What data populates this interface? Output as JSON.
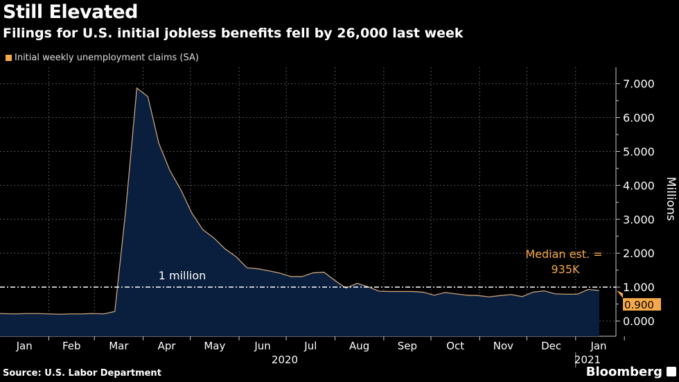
{
  "title": "Still Elevated",
  "subtitle": "Filings for U.S. initial jobless benefits fell by 26,000 last week",
  "legend": "Initial weekly unemployment claims (SA)",
  "source": "Source: U.S. Labor Department",
  "brand": "Bloomberg",
  "colors": {
    "line": "#c9a27c",
    "fill": "#0a1f3d",
    "accent": "#f6a94a",
    "background": "#000000"
  },
  "chart_data": {
    "type": "area",
    "title": "Still Elevated",
    "ylabel": "Millions",
    "ylim": [
      -0.5,
      7.3
    ],
    "yticks": [
      "0.000",
      "1.000",
      "2.000",
      "3.000",
      "4.000",
      "5.000",
      "6.000",
      "7.000"
    ],
    "ytick_values": [
      0,
      1,
      2,
      3,
      4,
      5,
      6,
      7
    ],
    "xticks": [
      "Jan",
      "Feb",
      "Mar",
      "Apr",
      "May",
      "Jun",
      "Jul",
      "Aug",
      "Sep",
      "Oct",
      "Nov",
      "Dec",
      "Jan"
    ],
    "year_labels": [
      "2020",
      "2021"
    ],
    "grid": true,
    "legend_position": "top-left",
    "series": [
      {
        "name": "Initial weekly unemployment claims (SA)",
        "start_date": "2020-01-04",
        "frequency": "weekly",
        "values": [
          0.22,
          0.21,
          0.22,
          0.22,
          0.21,
          0.2,
          0.21,
          0.21,
          0.22,
          0.21,
          0.28,
          3.3,
          6.87,
          6.62,
          5.24,
          4.44,
          3.87,
          3.18,
          2.69,
          2.45,
          2.13,
          1.9,
          1.57,
          1.54,
          1.48,
          1.41,
          1.31,
          1.31,
          1.42,
          1.44,
          1.19,
          0.97,
          1.11,
          1.01,
          0.88,
          0.87,
          0.87,
          0.87,
          0.85,
          0.76,
          0.84,
          0.8,
          0.76,
          0.75,
          0.71,
          0.75,
          0.78,
          0.72,
          0.85,
          0.89,
          0.8,
          0.79,
          0.79,
          0.93,
          0.9
        ]
      }
    ],
    "reference_line": {
      "value": 1.0,
      "label": "1 million"
    },
    "annotation": {
      "line1": "Median est. =",
      "line2": "935K"
    },
    "last_value_label": "0.900"
  }
}
